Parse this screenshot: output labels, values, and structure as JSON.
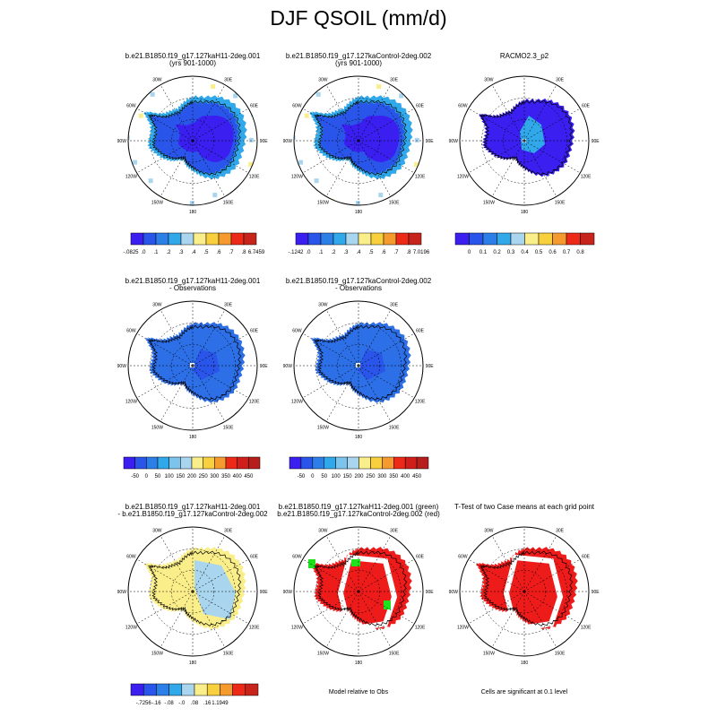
{
  "title": "DJF QSOIL (mm/d)",
  "panels": [
    {
      "id": "p1",
      "title1": "b.e21.B1850.f19_g17.127kaH11-2deg.001",
      "title2": "(yrs 901-1000)",
      "style": "model_a"
    },
    {
      "id": "p2",
      "title1": "b.e21.B1850.f19_g17.127kaControl-2deg.002",
      "title2": "(yrs 901-1000)",
      "style": "model_b"
    },
    {
      "id": "p3",
      "title1": "RACMO2.3_p2",
      "title2": "",
      "style": "obs"
    },
    {
      "id": "p4",
      "title1": "b.e21.B1850.f19_g17.127kaH11-2deg.001",
      "title2": "- Observations",
      "style": "diff_obs"
    },
    {
      "id": "p5",
      "title1": "b.e21.B1850.f19_g17.127kaControl-2deg.002",
      "title2": "- Observations",
      "style": "diff_obs"
    },
    {
      "id": "p7",
      "title1": "b.e21.B1850.f19_g17.127kaH11-2deg.001",
      "title2": "- b.e21.B1850.f19_g17.127kaControl-2deg.002",
      "style": "diff_case"
    },
    {
      "id": "p8",
      "title1": "b.e21.B1850.f19_g17.127kaH11-2deg.001 (green)",
      "title2": "b.e21.B1850.f19_g17.127kaControl-2deg.002 (red)",
      "style": "rel_obs"
    },
    {
      "id": "p9",
      "title1": "T-Test of two Case means at each grid point",
      "title2": "",
      "style": "ttest"
    }
  ],
  "panel_notes": {
    "p8": "Model relative to Obs",
    "p9": "Cells are significant at 0.1 level"
  },
  "map_labels": {
    "lon": [
      "30E",
      "60E",
      "90E",
      "120E",
      "150E",
      "180",
      "150W",
      "120W",
      "90W",
      "60W",
      "30W"
    ]
  },
  "colorbars": [
    {
      "id": "cb1",
      "colors": [
        "#3a1ff0",
        "#2a55ea",
        "#2d7fe8",
        "#30a8ea",
        "#a9d6ee",
        "#faee8a",
        "#f8cf3c",
        "#f59a2e",
        "#ec2a17",
        "#c7241c"
      ],
      "labels": [
        "-.0825",
        ".0",
        ".1",
        ".2",
        ".3",
        ".4",
        ".5",
        ".6",
        ".7",
        ".8",
        "6.7459"
      ]
    },
    {
      "id": "cb2",
      "colors": [
        "#3a1ff0",
        "#2a55ea",
        "#2d7fe8",
        "#30a8ea",
        "#a9d6ee",
        "#faee8a",
        "#f8cf3c",
        "#f59a2e",
        "#ec2a17",
        "#c7241c"
      ],
      "labels": [
        "-.1242",
        ".0",
        ".1",
        ".2",
        ".3",
        ".4",
        ".5",
        ".6",
        ".7",
        ".8",
        "7.0196"
      ]
    },
    {
      "id": "cb3",
      "colors": [
        "#3a1ff0",
        "#2a55ea",
        "#2d7fe8",
        "#30a8ea",
        "#a9d6ee",
        "#faee8a",
        "#f8cf3c",
        "#f59a2e",
        "#ec2a17",
        "#c7241c"
      ],
      "labels": [
        "0",
        "0.1",
        "0.2",
        "0.3",
        "0.4",
        "0.5",
        "0.6",
        "0.7",
        "0.8"
      ]
    },
    {
      "id": "cb4",
      "colors": [
        "#3a1ff0",
        "#2a55ea",
        "#2d7fe8",
        "#30a8ea",
        "#7cc4ec",
        "#a9d6ee",
        "#faee8a",
        "#f8cf3c",
        "#f59a2e",
        "#ec2a17",
        "#d01f1a",
        "#b51e1c"
      ],
      "labels": [
        "-50",
        "0",
        "50",
        "100",
        "150",
        "200",
        "250",
        "300",
        "350",
        "400",
        "450"
      ]
    },
    {
      "id": "cb5",
      "colors": [
        "#3a1ff0",
        "#2a55ea",
        "#2d7fe8",
        "#30a8ea",
        "#7cc4ec",
        "#a9d6ee",
        "#faee8a",
        "#f8cf3c",
        "#f59a2e",
        "#ec2a17",
        "#d01f1a",
        "#b51e1c"
      ],
      "labels": [
        "-50",
        "0",
        "50",
        "100",
        "150",
        "200",
        "250",
        "300",
        "350",
        "400",
        "450"
      ]
    },
    {
      "id": "cb7",
      "colors": [
        "#3a1ff0",
        "#2a55ea",
        "#2d7fe8",
        "#30a8ea",
        "#a9d6ee",
        "#faee8a",
        "#f8cf3c",
        "#f59a2e",
        "#ec2a17",
        "#c7241c"
      ],
      "labels": [
        "-.7256",
        "-.16",
        "-.08",
        "-.0",
        ".08",
        ".16",
        "1.1949"
      ]
    }
  ],
  "colors": {
    "model_dark": "#3a1ff0",
    "model_mid": "#2a55ea",
    "model_light": "#30a8ea",
    "pale_blue": "#a9d6ee",
    "obs_fill": "#3a1ff0",
    "diff_fill": "#2d6fe6",
    "pale_yellow": "#faee8a",
    "red": "#ee1b1b",
    "green": "#1fe31a"
  }
}
